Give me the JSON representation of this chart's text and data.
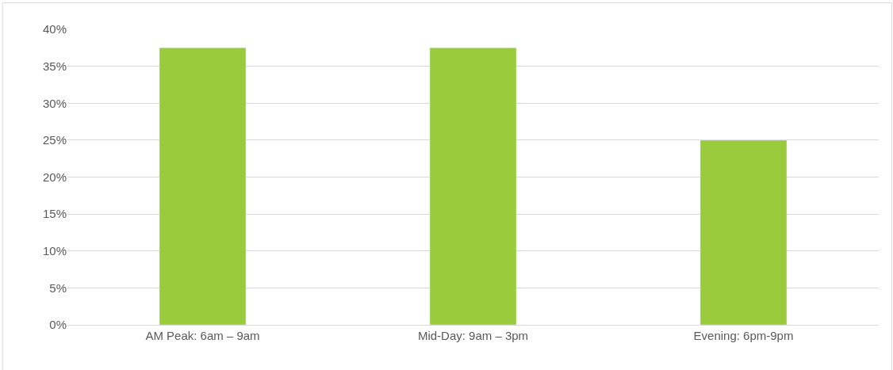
{
  "chart_data": {
    "type": "bar",
    "categories": [
      "AM Peak: 6am – 9am",
      "Mid-Day: 9am – 3pm",
      "Evening: 6pm-9pm"
    ],
    "values": [
      37.5,
      37.5,
      25
    ],
    "color": "#9acb3c",
    "ylim": [
      0,
      40
    ],
    "yticks": [
      {
        "value": 0,
        "label": "0%"
      },
      {
        "value": 5,
        "label": "5%"
      },
      {
        "value": 10,
        "label": "10%"
      },
      {
        "value": 15,
        "label": "15%"
      },
      {
        "value": 20,
        "label": "20%"
      },
      {
        "value": 25,
        "label": "25%"
      },
      {
        "value": 30,
        "label": "30%"
      },
      {
        "value": 35,
        "label": "35%"
      },
      {
        "value": 40,
        "label": "40%"
      }
    ],
    "grid": "y"
  }
}
